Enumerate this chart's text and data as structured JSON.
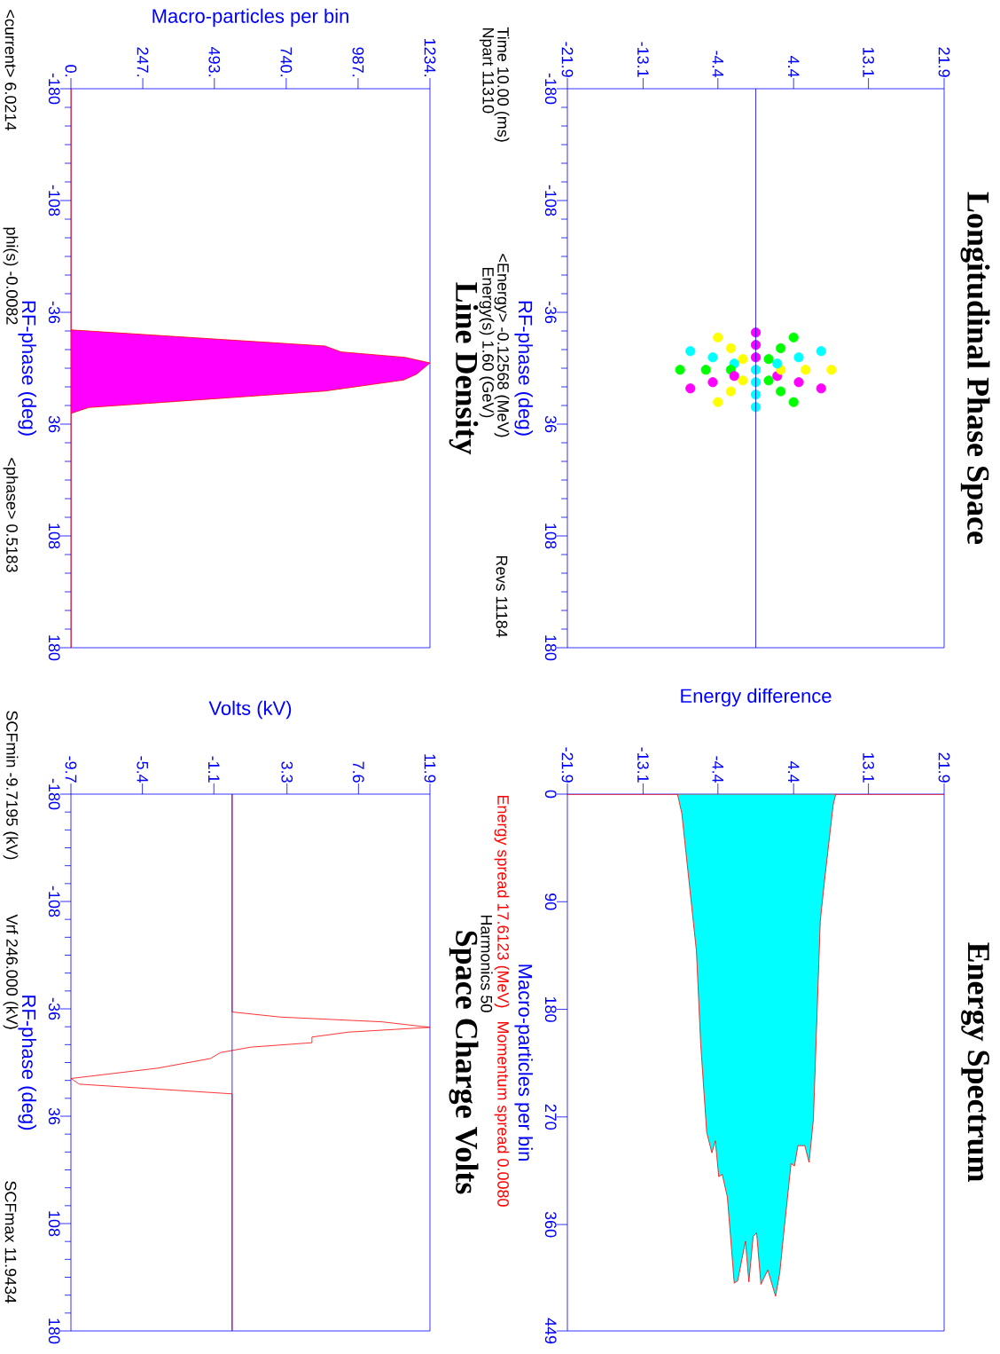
{
  "chart_data": [
    {
      "type": "scatter",
      "ylabel": "RF-phase (deg)",
      "marker": "circle",
      "x": [
        0,
        4.4,
        7.6,
        8.8,
        7.6,
        4.4,
        0,
        -4.4,
        -7.6,
        -8.8,
        -7.6,
        -4.4,
        0,
        2.9,
        5,
        5.8,
        5,
        2.9,
        0,
        -2.9,
        -5,
        -5.8,
        -5,
        -2.9,
        0,
        1.5,
        2.5,
        2.9,
        2.5,
        1.5,
        0,
        -1.5,
        -2.5,
        -2.9,
        -2.5,
        -1.5,
        0
      ],
      "values": [
        25,
        21.8,
        13,
        1,
        -11,
        -19.8,
        -23,
        -19.8,
        -11,
        1,
        13,
        21.8,
        17,
        14.9,
        9,
        1,
        -7,
        -12.9,
        -15,
        -12.9,
        -7,
        1,
        9,
        14.9,
        9,
        7.9,
        5,
        1,
        -3,
        -5.9,
        -7,
        -5.9,
        -3,
        1,
        5,
        7.9,
        1
      ],
      "colors": [
        "#00ffff",
        "#00ff00",
        "#ff00ff",
        "#ffff00",
        "#00ffff",
        "#00ff00",
        "#ff00ff",
        "#ffff00",
        "#00ffff",
        "#00ff00",
        "#ff00ff",
        "#ffff00",
        "#00ffff",
        "#00ff00",
        "#ff00ff",
        "#ffff00",
        "#00ffff",
        "#00ff00",
        "#ff00ff",
        "#ffff00",
        "#00ffff",
        "#00ff00",
        "#ff00ff",
        "#ffff00",
        "#00ffff",
        "#00ff00",
        "#ff00ff",
        "#ffff00",
        "#00ffff",
        "#00ff00",
        "#ff00ff",
        "#ffff00",
        "#00ffff",
        "#00ff00",
        "#ff00ff",
        "#ffff00",
        "#00ffff"
      ],
      "xlim": [
        -21.9,
        21.9
      ],
      "xticks": [
        -21.9,
        -13.1,
        -4.4,
        4.4,
        13.1,
        21.9
      ],
      "ylim": [
        180,
        -180
      ],
      "yticks": [
        -180,
        -108,
        -36,
        36,
        108,
        180
      ],
      "ref_lines": [
        {
          "axis": "x",
          "value": 0,
          "color": "#0000ff"
        }
      ],
      "annotations": [
        "Longitudinal Phase Space",
        "Time 10.00 (ms)",
        "Npart 11310",
        "<Energy> -0.12568 (MeV)",
        "Energy(s) 1.60 (GeV)",
        "Revs 11184"
      ]
    },
    {
      "type": "area",
      "xlabel": "Energy difference",
      "ylabel": "Macro-particles per bin",
      "color": "#00ffff",
      "x": [
        -21.9,
        -9.1,
        -8.6,
        -6.9,
        -6.4,
        -5.7,
        -5.1,
        -4.7,
        -4.3,
        -3.9,
        -3.3,
        -2.5,
        -2.1,
        -1.2,
        -0.8,
        -0.3,
        0.1,
        0.6,
        1.4,
        2.3,
        2.8,
        3.2,
        4.1,
        4.5,
        4.9,
        5.7,
        6.2,
        6.7,
        7.5,
        8.0,
        9.0,
        9.3,
        21.9
      ],
      "values": [
        0,
        0,
        16,
        131,
        209,
        283,
        300,
        290,
        320,
        318,
        337,
        409,
        407,
        374,
        408,
        370,
        367,
        410,
        398,
        420,
        400,
        371,
        309,
        311,
        294,
        294,
        308,
        272,
        106,
        72,
        9,
        0,
        0
      ],
      "xlim": [
        -21.9,
        21.9
      ],
      "xticks": [
        -21.9,
        -13.1,
        -4.4,
        4.4,
        13.1,
        21.9
      ],
      "ylim": [
        449,
        0
      ],
      "yticks": [
        0,
        90,
        180,
        270,
        360,
        449
      ],
      "annotations": [
        "Energy Spectrum",
        "Energy spread 17.6123 (MeV)",
        "Momentum spread 0.0080",
        "Harmonics 50"
      ]
    },
    {
      "type": "area",
      "orientation": "horizontal",
      "xlabel": "Macro-particles per bin",
      "ylabel": "RF-phase (deg)",
      "color": "#ff00ff",
      "x": [
        -180,
        -24.7,
        -14.3,
        -10.5,
        -7.0,
        -3.4,
        3.8,
        7.6,
        14.7,
        25.3,
        29.1,
        180
      ],
      "values": [
        0,
        0,
        873,
        929,
        1148,
        1234,
        1188,
        1143,
        873,
        61,
        0,
        0
      ],
      "xlim": [
        0,
        1234
      ],
      "xticks": [
        {
          "value": 0,
          "label": "0."
        },
        {
          "value": 247,
          "label": "247."
        },
        {
          "value": 493,
          "label": "493."
        },
        {
          "value": 740,
          "label": "740."
        },
        {
          "value": 987,
          "label": "987."
        },
        {
          "value": 1234,
          "label": "1234."
        }
      ],
      "ylim": [
        180,
        -180
      ],
      "yticks": [
        -180,
        -108,
        -36,
        36,
        108,
        180
      ],
      "annotations": [
        "Line Density",
        "<current> 6.0214",
        "phi(s) -0.0082",
        "<phase> 0.5183"
      ]
    },
    {
      "type": "line",
      "orientation": "horizontal",
      "xlabel": "Volts (kV)",
      "ylabel": "RF-phase (deg)",
      "color": "#ff0000",
      "x": [
        -180,
        -33.9,
        -30.5,
        -27.3,
        -23.6,
        -20.4,
        -17.1,
        -13.3,
        -10.3,
        -6.7,
        -2.7,
        3.8,
        10.7,
        14.5,
        21.0,
        180
      ],
      "values": [
        0,
        0,
        2.9,
        9.0,
        11.9,
        7.0,
        4.8,
        4.8,
        1.1,
        -0.7,
        -1.3,
        -4.5,
        -9.7,
        -9.2,
        0,
        0
      ],
      "xlim": [
        -9.7,
        11.9
      ],
      "xticks": [
        -9.7,
        -5.4,
        -1.1,
        3.3,
        7.6,
        11.9
      ],
      "ylim": [
        180,
        -180
      ],
      "yticks": [
        -180,
        -108,
        -36,
        36,
        108,
        180
      ],
      "ref_lines": [
        {
          "axis": "x",
          "value": 0,
          "color": "#0000ff"
        }
      ],
      "annotations": [
        "Space Charge Volts",
        "SCFmin -9.7195 (kV)",
        "Vrf 246.000 (kV)",
        "SCFmax 11.9434"
      ]
    }
  ]
}
